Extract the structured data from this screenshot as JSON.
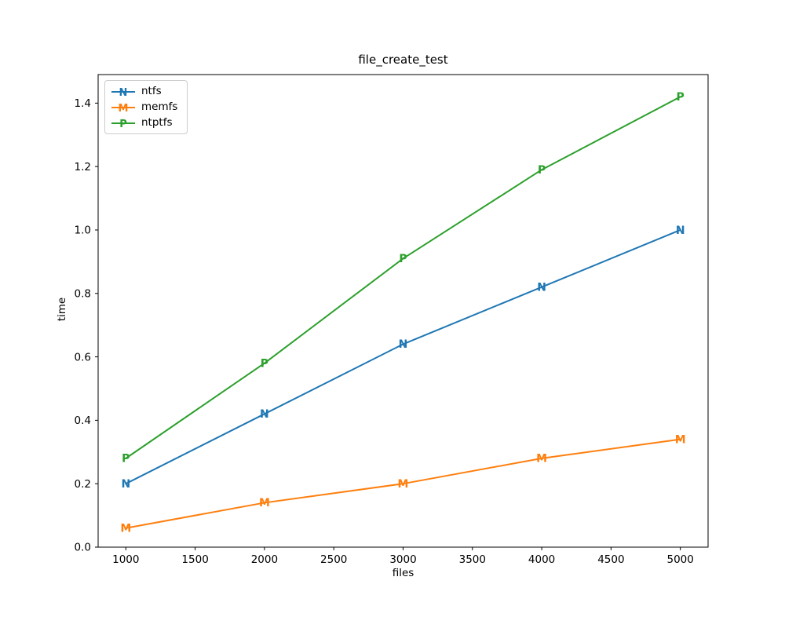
{
  "chart_data": {
    "type": "line",
    "title": "file_create_test",
    "xlabel": "files",
    "ylabel": "time",
    "x": [
      1000,
      2000,
      3000,
      4000,
      5000
    ],
    "series": [
      {
        "name": "ntfs",
        "marker": "N",
        "color": "#1f77b4",
        "values": [
          0.2,
          0.42,
          0.64,
          0.82,
          1.0
        ]
      },
      {
        "name": "memfs",
        "marker": "M",
        "color": "#ff7f0e",
        "values": [
          0.06,
          0.14,
          0.2,
          0.28,
          0.34
        ]
      },
      {
        "name": "ntptfs",
        "marker": "P",
        "color": "#2ca02c",
        "values": [
          0.28,
          0.58,
          0.91,
          1.19,
          1.42
        ]
      }
    ],
    "xticks": [
      1000,
      1500,
      2000,
      2500,
      3000,
      3500,
      4000,
      4500,
      5000
    ],
    "yticks": [
      "0.0",
      "0.2",
      "0.4",
      "0.6",
      "0.8",
      "1.0",
      "1.2",
      "1.4"
    ],
    "xlim": [
      800,
      5200
    ],
    "ylim": [
      0,
      1.49
    ],
    "grid": false,
    "legend_position": "upper left",
    "axis_color": "#000000",
    "background": "#ffffff"
  }
}
